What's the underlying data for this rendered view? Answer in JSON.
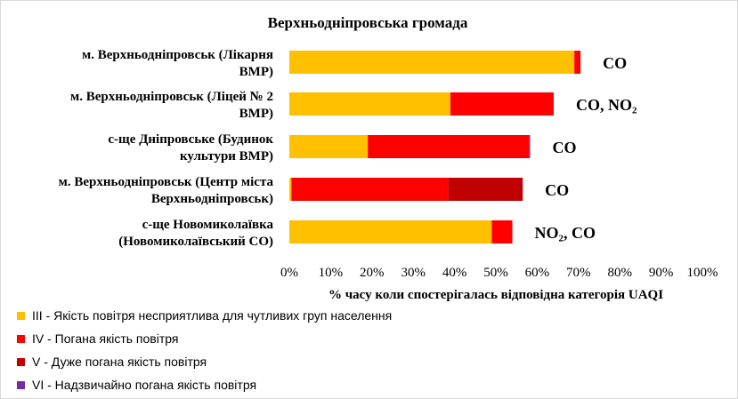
{
  "chart_data": {
    "type": "bar",
    "orientation": "horizontal",
    "stacked": true,
    "title": "Верхньодніпровська  громада",
    "xlabel": "% часу коли спостерігалась відповідна категорія UAQI",
    "ylabel": "",
    "xlim": [
      0,
      100
    ],
    "x_tick_labels": [
      "0%",
      "10%",
      "20%",
      "30%",
      "40%",
      "50%",
      "60%",
      "70%",
      "80%",
      "90%",
      "100%"
    ],
    "grid": false,
    "legend_position": "bottom",
    "categories": [
      [
        "м. Верхньодніпровськ (Лікарня",
        "ВМР)"
      ],
      [
        "м. Верхньодніпровськ (Ліцей № 2",
        "ВМР)"
      ],
      [
        "с-ще Дніпровське (Будинок",
        "культури ВМР)"
      ],
      [
        "м. Верхньодніпровськ (Центр міста",
        "Верхньодніпровськ)"
      ],
      [
        "с-ще Новомиколаївка",
        "(Новомиколаївський СО)"
      ]
    ],
    "series": [
      {
        "name": "ІІІ - Якість повітря несприятлива  для чутливих  груп населення",
        "color": "#ffc000",
        "values": [
          69,
          39,
          19,
          0.5,
          49
        ]
      },
      {
        "name": "IV - Погана якість повітря",
        "color": "#ff0000",
        "values": [
          1.5,
          25,
          39,
          38,
          5
        ]
      },
      {
        "name": "V - Дуже погана  якість повітря",
        "color": "#c00000",
        "values": [
          0,
          0,
          0,
          18,
          0
        ]
      },
      {
        "name": "VI - Надзвичайно  погана  якість повітря",
        "color": "#7030a0",
        "values": [
          0,
          0,
          0.3,
          0,
          0
        ]
      }
    ],
    "annotations": [
      "CO",
      "CO, NO₂",
      "CO",
      "CO",
      "NO₂, CO"
    ]
  }
}
